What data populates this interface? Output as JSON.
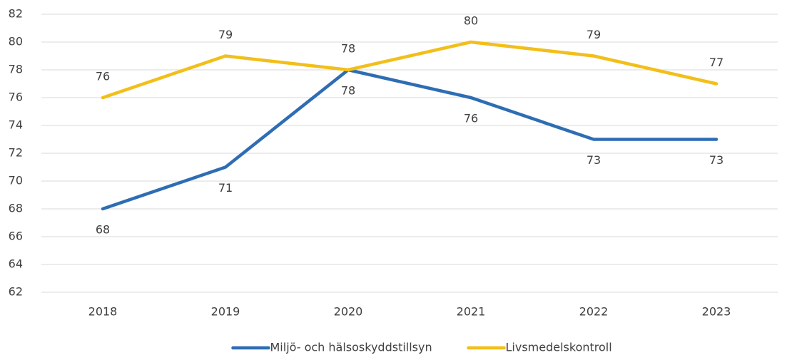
{
  "chart_data": {
    "type": "line",
    "categories": [
      "2018",
      "2019",
      "2020",
      "2021",
      "2022",
      "2023"
    ],
    "series": [
      {
        "name": "Miljö- och hälsoskyddstillsyn",
        "color": "#2e6db4",
        "values": [
          68,
          71,
          78,
          76,
          73,
          73
        ]
      },
      {
        "name": "Livsmedelskontroll",
        "color": "#f2bf1a",
        "values": [
          76,
          79,
          78,
          80,
          79,
          77
        ]
      }
    ],
    "ylim": [
      62,
      82
    ],
    "yticks": [
      62,
      64,
      66,
      68,
      70,
      72,
      74,
      76,
      78,
      80,
      82
    ],
    "grid": true,
    "legend": "bottom"
  }
}
